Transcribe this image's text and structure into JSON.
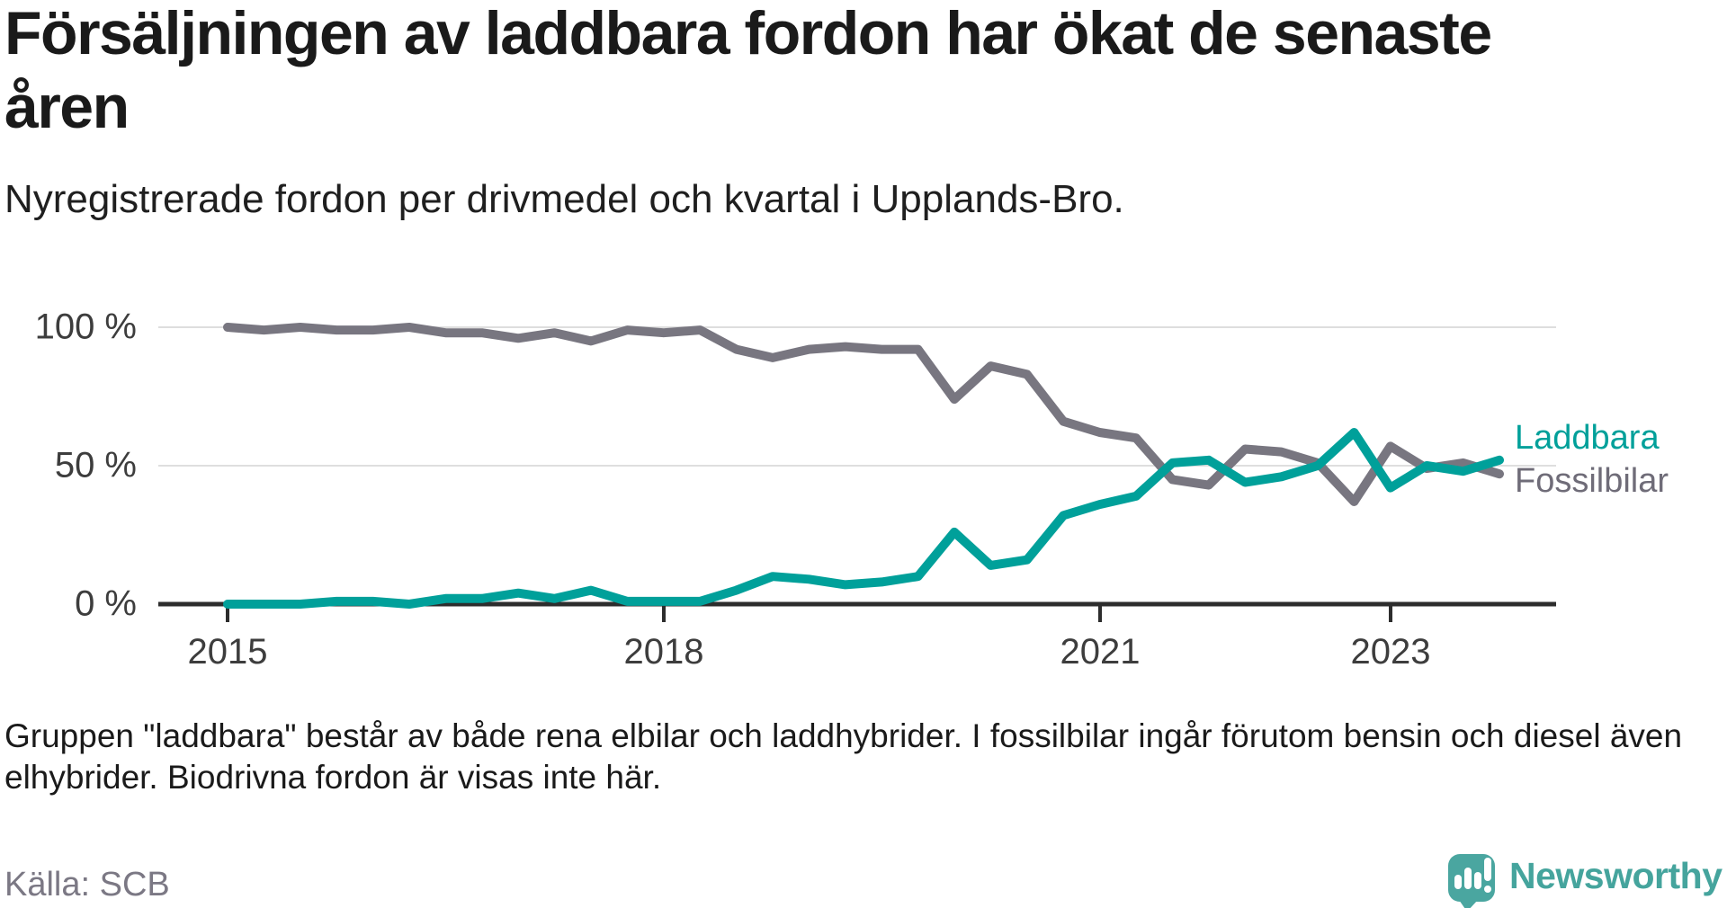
{
  "header": {
    "title_lines": [
      "Försäljningen av laddbara fordon har ökat de senaste",
      "åren"
    ],
    "subtitle": "Nyregistrerade fordon per drivmedel och kvartal i Upplands-Bro."
  },
  "chart_data": {
    "type": "line",
    "title": "Försäljningen av laddbara fordon har ökat de senaste åren",
    "subtitle": "Nyregistrerade fordon per drivmedel och kvartal i Upplands-Bro.",
    "x_tick_labels": [
      "2015",
      "2018",
      "2021",
      "2023"
    ],
    "y_tick_labels": [
      "100 %",
      "50 %",
      "0 %"
    ],
    "ylim": [
      0,
      100
    ],
    "y_unit": "%",
    "grid": "horizontal-only",
    "legend_position": "right-of-line-ends",
    "quarters": [
      "2015 Q1",
      "2015 Q2",
      "2015 Q3",
      "2015 Q4",
      "2016 Q1",
      "2016 Q2",
      "2016 Q3",
      "2016 Q4",
      "2017 Q1",
      "2017 Q2",
      "2017 Q3",
      "2017 Q4",
      "2018 Q1",
      "2018 Q2",
      "2018 Q3",
      "2018 Q4",
      "2019 Q1",
      "2019 Q2",
      "2019 Q3",
      "2019 Q4",
      "2020 Q1",
      "2020 Q2",
      "2020 Q3",
      "2020 Q4",
      "2021 Q1",
      "2021 Q2",
      "2021 Q3",
      "2021 Q4",
      "2022 Q1",
      "2022 Q2",
      "2022 Q3",
      "2022 Q4",
      "2023 Q1",
      "2023 Q2",
      "2023 Q3",
      "2023 Q4"
    ],
    "series": [
      {
        "name": "Fossilbilar",
        "color": "#787680",
        "label_color": "#6f6c78",
        "values": [
          100,
          99,
          100,
          99,
          99,
          100,
          98,
          98,
          96,
          98,
          95,
          99,
          98,
          99,
          92,
          89,
          92,
          93,
          92,
          92,
          74,
          86,
          83,
          66,
          62,
          60,
          45,
          43,
          56,
          55,
          51,
          37,
          57,
          49,
          51,
          47
        ]
      },
      {
        "name": "Laddbara",
        "color": "#00a09a",
        "label_color": "#00a09a",
        "values": [
          0,
          0,
          0,
          1,
          1,
          0,
          2,
          2,
          4,
          2,
          5,
          1,
          1,
          1,
          5,
          10,
          9,
          7,
          8,
          10,
          26,
          14,
          16,
          32,
          36,
          39,
          51,
          52,
          44,
          46,
          50,
          62,
          42,
          50,
          48,
          52
        ]
      }
    ]
  },
  "notes": {
    "lines": [
      "Gruppen \"laddbara\" består av både rena elbilar och laddhybrider. I fossilbilar ingår förutom bensin och diesel även",
      "elhybrider. Biodrivna fordon är visas inte här."
    ]
  },
  "source": "Källa: SCB",
  "logo": {
    "text": "Newsworthy",
    "color": "#45a49d",
    "mark": "speech-bubble-bar-chart-icon"
  }
}
